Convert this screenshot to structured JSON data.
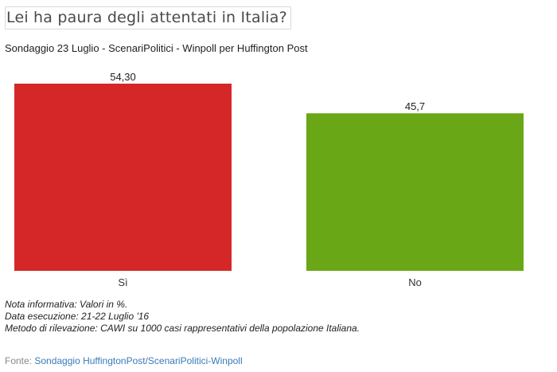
{
  "chart_data": {
    "type": "bar",
    "title": "Lei ha paura degli attentati in Italia?",
    "subtitle": "Sondaggio 23 Luglio - ScenariPolitici - Winpoll per Huffington Post",
    "categories": [
      "Sì",
      "No"
    ],
    "values": [
      54.3,
      45.7
    ],
    "value_labels": [
      "54,30",
      "45,7"
    ],
    "colors": [
      "#d62728",
      "#6aa717"
    ],
    "ylim": [
      0,
      54.3
    ],
    "grid": false,
    "legend": "none"
  },
  "notes": [
    "Nota informativa: Valori in %.",
    "Data esecuzione: 21-22 Luglio '16",
    "Metodo di rilevazione: CAWI su 1000 casi rappresentativi della popolazione Italiana."
  ],
  "source": {
    "prefix": "Fonte: ",
    "link_text": "Sondaggio HuffingtonPost/ScenariPolitici-Winpoll"
  }
}
